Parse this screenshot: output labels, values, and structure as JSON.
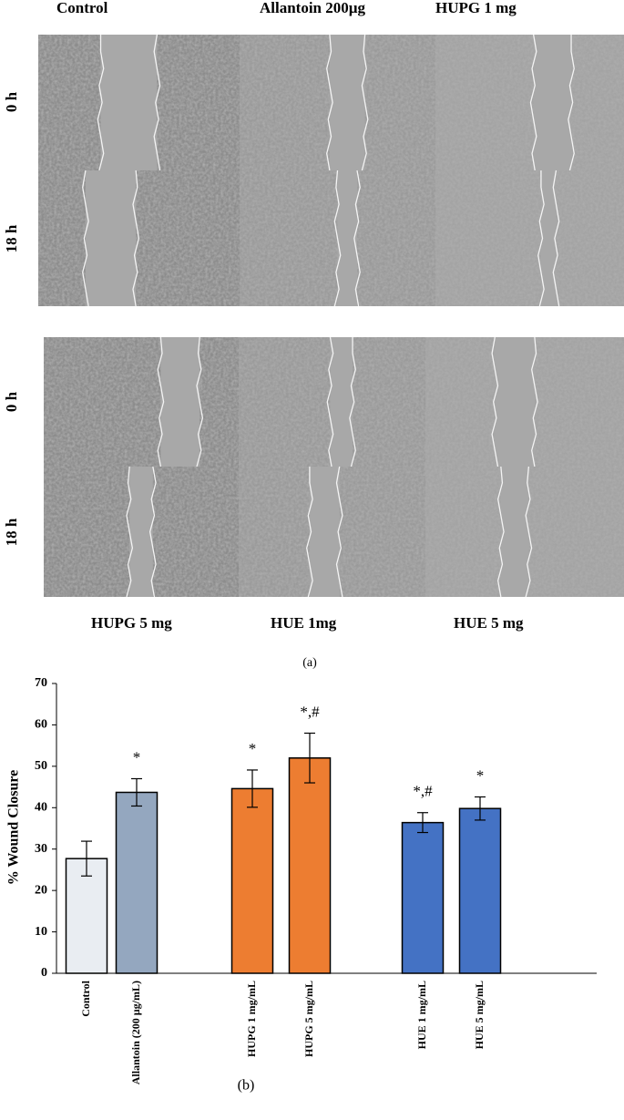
{
  "figure_a": {
    "top_column_labels": [
      "Control",
      "Allantoin 200µg",
      "HUPG 1 mg"
    ],
    "bottom_column_labels": [
      "HUPG 5 mg",
      "HUE 1mg",
      "HUE 5 mg"
    ],
    "top_row_labels": [
      "0 h",
      "18 h"
    ],
    "bottom_row_labels": [
      "0 h",
      "18 h"
    ],
    "panel_label": "(a)"
  },
  "chart_data": {
    "type": "bar",
    "ylabel": "% Wound Closure",
    "panel_label": "(b)",
    "categories": [
      "Control",
      "Allantoin (200 µg/mL)",
      "HUPG 1 mg/mL",
      "HUPG 5 mg/mL",
      "HUE 1 mg/mL",
      "HUE 5 mg/mL"
    ],
    "values": [
      27.7,
      43.7,
      44.6,
      52.0,
      36.4,
      39.8
    ],
    "errors": [
      4.2,
      3.3,
      4.5,
      6.0,
      2.4,
      2.8
    ],
    "colors": [
      "#e9edf2",
      "#94a7bf",
      "#ed7d31",
      "#ed7d31",
      "#4472c4",
      "#4472c4"
    ],
    "annotations": [
      null,
      "*",
      "*",
      "*,#",
      "*,#",
      "*"
    ],
    "ylim": [
      0,
      70
    ],
    "yticks": [
      0,
      10,
      20,
      30,
      40,
      50,
      60,
      70
    ]
  }
}
